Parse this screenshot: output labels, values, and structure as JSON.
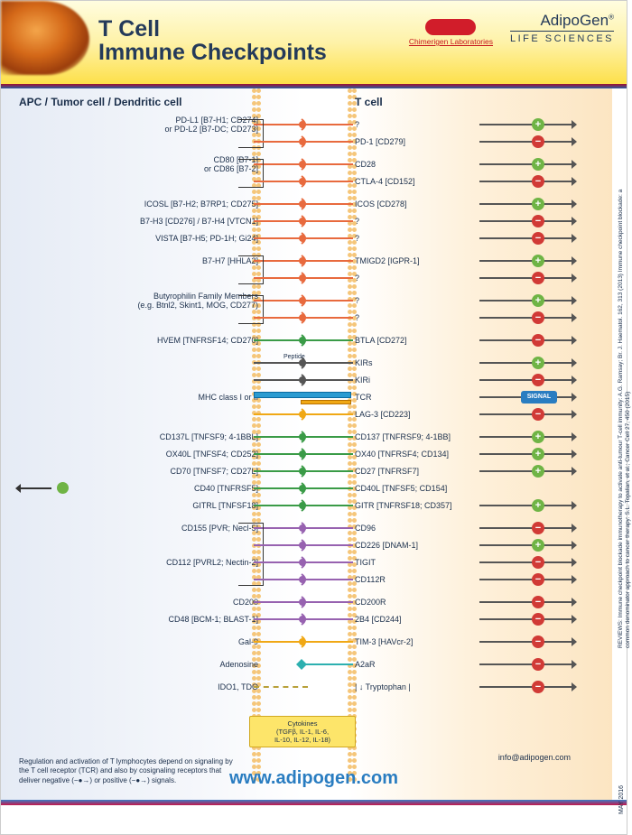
{
  "header": {
    "title_line1": "T Cell",
    "title_line2": "Immune Checkpoints",
    "chimerigen": "Chimerigen Laboratories",
    "adipogen_name": "AdipoGen",
    "adipogen_sub": "LIFE SCIENCES"
  },
  "columns": {
    "left": "APC / Tumor cell / Dendritic cell",
    "right": "T cell"
  },
  "colors": {
    "orange": "#e86a3e",
    "green": "#3a9b47",
    "purple": "#9762b0",
    "amber": "#f0a815",
    "mustard": "#b8a03a",
    "teal": "#2db0b0",
    "gray": "#555555",
    "blue": "#2a9bd1",
    "gold": "#f0a815"
  },
  "interactions": [
    {
      "left": "PD-L1 [B7-H1; CD274]\nor PD-L2 [B7-DC; CD273]",
      "right": "?",
      "sig": "pos",
      "color": "orange",
      "brace_rows": 2
    },
    {
      "left": "",
      "right": "PD-1 [CD279]",
      "sig": "neg",
      "color": "orange"
    },
    {
      "gap": true
    },
    {
      "left": "CD80 [B7-1]\nor CD86 [B7-2]",
      "right": "CD28",
      "sig": "pos",
      "color": "orange",
      "brace_rows": 2
    },
    {
      "left": "",
      "right": "CTLA-4 [CD152]",
      "sig": "neg",
      "color": "orange"
    },
    {
      "gap": true
    },
    {
      "left": "ICOSL [B7-H2; B7RP1; CD275]",
      "right": "ICOS [CD278]",
      "sig": "pos",
      "color": "orange"
    },
    {
      "left": "B7-H3 [CD276] / B7-H4 [VTCN1]",
      "right": "?",
      "sig": "neg",
      "color": "orange"
    },
    {
      "left": "VISTA [B7-H5; PD-1H; Gi24]",
      "right": "?",
      "sig": "neg",
      "color": "orange"
    },
    {
      "gap": true
    },
    {
      "left": "B7-H7 [HHLA2]",
      "right": "TMIGD2 [IGPR-1]",
      "sig": "pos",
      "color": "orange",
      "brace_rows": 2
    },
    {
      "left": "",
      "right": "?",
      "sig": "neg",
      "color": "orange"
    },
    {
      "gap": true
    },
    {
      "left": "Butyrophilin Family Members\n(e.g. Btnl2, Skint1, MOG, CD277)",
      "right": "?",
      "sig": "pos",
      "color": "orange",
      "brace_rows": 2
    },
    {
      "left": "",
      "right": "?",
      "sig": "neg",
      "color": "orange"
    },
    {
      "gap": true
    },
    {
      "left": "HVEM [TNFRSF14; CD270]",
      "right": "BTLA [CD272]",
      "sig": "neg",
      "color": "green"
    },
    {
      "gap": true
    },
    {
      "left": "",
      "right": "KIRs",
      "sig": "pos",
      "color": "gray",
      "peptide": true
    },
    {
      "left": "",
      "right": "KIRi",
      "sig": "neg",
      "color": "gray"
    },
    {
      "left": "MHC class I or II",
      "right": "TCR",
      "sig": "signal",
      "color": "blue",
      "mhc": true
    },
    {
      "left": "",
      "right": "LAG-3 [CD223]",
      "sig": "neg",
      "color": "gold"
    },
    {
      "gap": true
    },
    {
      "left": "CD137L [TNFSF9; 4-1BBL]",
      "right": "CD137 [TNFRSF9; 4-1BB]",
      "sig": "pos",
      "color": "green"
    },
    {
      "left": "OX40L [TNFSF4; CD252]",
      "right": "OX40 [TNFRSF4; CD134]",
      "sig": "pos",
      "color": "green"
    },
    {
      "left": "CD70 [TNFSF7; CD27L]",
      "right": "CD27 [TNFRSF7]",
      "sig": "pos",
      "color": "green"
    },
    {
      "left": "CD40 [TNFRSF5]",
      "right": "CD40L [TNFSF5; CD154]",
      "sig": "",
      "color": "green",
      "cd40": true
    },
    {
      "left": "GITRL [TNFSF18]",
      "right": "GITR [TNFRSF18; CD357]",
      "sig": "pos",
      "color": "green"
    },
    {
      "gap": true
    },
    {
      "left": "CD155 [PVR; Necl-5]",
      "right": "CD96",
      "sig": "neg",
      "color": "purple",
      "brace_rows": 4,
      "brace_both": true
    },
    {
      "left": "",
      "right": "CD226 [DNAM-1]",
      "sig": "pos",
      "color": "purple"
    },
    {
      "left": "CD112 [PVRL2; Nectin-2]",
      "right": "TIGIT",
      "sig": "neg",
      "color": "purple"
    },
    {
      "left": "",
      "right": "CD112R",
      "sig": "neg",
      "color": "purple"
    },
    {
      "gap": true
    },
    {
      "left": "CD200",
      "right": "CD200R",
      "sig": "neg",
      "color": "purple"
    },
    {
      "left": "CD48 [BCM-1; BLAST-1]",
      "right": "2B4 [CD244]",
      "sig": "neg",
      "color": "purple"
    },
    {
      "gap": true
    },
    {
      "left": "Gal-9",
      "right": "TIM-3 [HAVcr-2]",
      "sig": "neg",
      "color": "amber"
    },
    {
      "gap": true
    },
    {
      "left": "Adenosine",
      "right": "A2aR",
      "sig": "neg",
      "color": "teal",
      "soluble": true
    },
    {
      "gap": true
    },
    {
      "left": "IDO1, TDO",
      "right": "| ↓ Tryptophan |",
      "sig": "neg",
      "color": "mustard",
      "dashed": true
    }
  ],
  "cytokines": "Cytokines\n(TGFβ, IL-1, IL-6,\nIL-10, IL-12, IL-18)",
  "footnote": "Regulation and activation of T lymphocytes depend on signaling by the T cell receptor (TCR) and also by cosignaling receptors that deliver negative (−●→) or positive (−●→) signals.",
  "website": "www.adipogen.com",
  "email": "info@adipogen.com",
  "date": "MAY 2016",
  "refs": "REVIEWS: Immune checkpoint blockade immunotherapy to activate anti-tumour T-cell immunity: A.G. Ramsay; Br. J. Haematol. 162, 313 (2013)  Immune checkpoint blockade: a common denominator approach to cancer therapy: S.L. Topalian, et al.; Cancer Cell 27, 450 (2015)"
}
